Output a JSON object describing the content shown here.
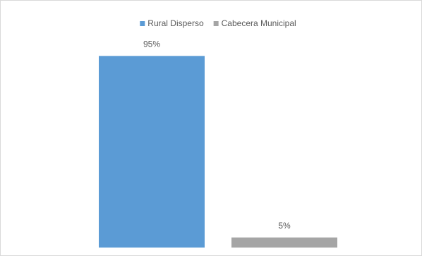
{
  "chart_data": {
    "type": "bar",
    "categories": [
      null
    ],
    "series": [
      {
        "name": "Rural Disperso",
        "color": "#5b9bd5",
        "values": [
          95
        ],
        "value_labels": [
          "95%"
        ]
      },
      {
        "name": "Cabecera Municipal",
        "color": "#a5a5a5",
        "values": [
          5
        ],
        "value_labels": [
          "5%"
        ]
      }
    ],
    "ylim": [
      0,
      100
    ],
    "legend": "top"
  }
}
